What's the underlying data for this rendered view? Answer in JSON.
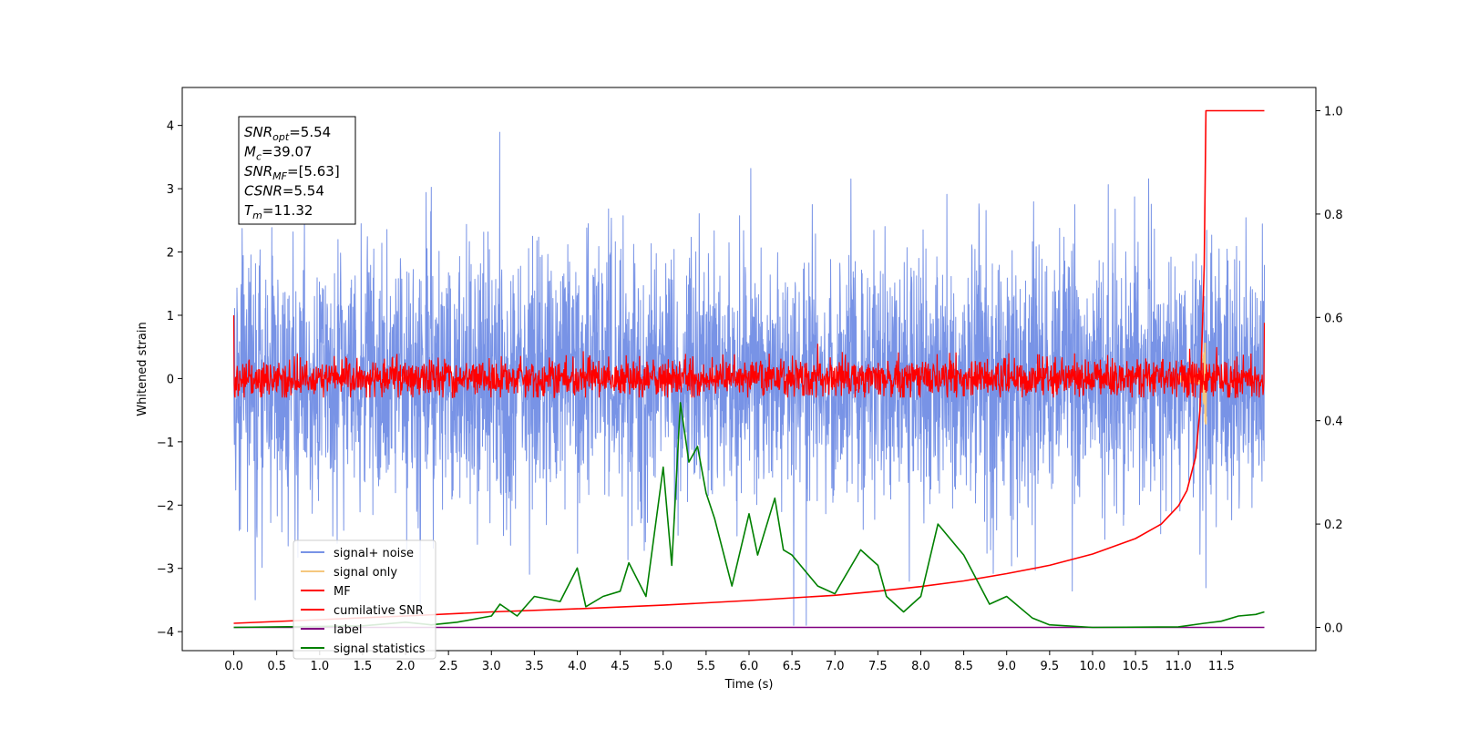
{
  "chart_data": {
    "type": "line",
    "xlabel": "Time (s)",
    "ylabel": "Whitened strain",
    "xlim": [
      -0.6,
      12.6
    ],
    "ylim_left": [
      -4.3,
      4.6
    ],
    "ylim_right": [
      -0.045,
      1.045
    ],
    "x_ticks": [
      0.0,
      0.5,
      1.0,
      1.5,
      2.0,
      2.5,
      3.0,
      3.5,
      4.0,
      4.5,
      5.0,
      5.5,
      6.0,
      6.5,
      7.0,
      7.5,
      8.0,
      8.5,
      9.0,
      9.5,
      10.0,
      10.5,
      11.0,
      11.5
    ],
    "x_tick_labels": [
      "0.0",
      "0.5",
      "1.0",
      "1.5",
      "2.0",
      "2.5",
      "3.0",
      "3.5",
      "4.0",
      "4.5",
      "5.0",
      "5.5",
      "6.0",
      "6.5",
      "7.0",
      "7.5",
      "8.0",
      "8.5",
      "9.0",
      "9.5",
      "10.0",
      "10.5",
      "11.0",
      "11.5"
    ],
    "y_left_ticks": [
      -4,
      -3,
      -2,
      -1,
      0,
      1,
      2,
      3,
      4
    ],
    "y_left_tick_labels": [
      "−4",
      "−3",
      "−2",
      "−1",
      "0",
      "1",
      "2",
      "3",
      "4"
    ],
    "y_right_ticks": [
      0.0,
      0.2,
      0.4,
      0.6,
      0.8,
      1.0
    ],
    "y_right_tick_labels": [
      "0.0",
      "0.2",
      "0.4",
      "0.6",
      "0.8",
      "1.0"
    ],
    "grid": false,
    "legend_position": "lower-left",
    "annotation": {
      "lines": [
        {
          "main": "SNR",
          "sub": "opt",
          "rest": "=5.54"
        },
        {
          "main": "M",
          "sub": "c",
          "rest": "=39.07"
        },
        {
          "main": "SNR",
          "sub": "MF",
          "rest": "=[5.63]"
        },
        {
          "main": "CSNR",
          "sub": "",
          "rest": "=5.54"
        },
        {
          "main": "T",
          "sub": "m",
          "rest": "=11.32"
        }
      ]
    },
    "series": [
      {
        "name": "signal+ noise",
        "color": "#7893e6",
        "axis": "left",
        "style": "noise",
        "x_range": [
          0.0,
          12.0
        ],
        "approx_std": 1.0,
        "y_range": [
          -3.9,
          4.2
        ]
      },
      {
        "name": "signal only",
        "color": "#f5c77e",
        "axis": "left",
        "style": "chirp",
        "merger_time": 11.32,
        "peak_amplitude": 0.45
      },
      {
        "name": "MF",
        "color": "#ff0000",
        "axis": "left",
        "style": "mf",
        "x_range": [
          0.0,
          12.0
        ],
        "baseline_std": 0.15,
        "start_value": 1.0,
        "end_value": 0.88
      },
      {
        "name": "cumilative SNR",
        "color": "#ff0000",
        "axis": "right",
        "x": [
          0.0,
          1.0,
          2.0,
          3.0,
          4.0,
          5.0,
          6.0,
          7.0,
          7.5,
          8.0,
          8.5,
          9.0,
          9.5,
          10.0,
          10.5,
          10.8,
          11.0,
          11.1,
          11.2,
          11.25,
          11.3,
          11.32,
          11.5,
          12.0
        ],
        "y": [
          0.008,
          0.015,
          0.022,
          0.03,
          0.036,
          0.043,
          0.052,
          0.062,
          0.07,
          0.079,
          0.09,
          0.104,
          0.12,
          0.142,
          0.172,
          0.2,
          0.235,
          0.265,
          0.33,
          0.42,
          0.7,
          1.0,
          1.0,
          1.0
        ]
      },
      {
        "name": "label",
        "color": "#800080",
        "axis": "right",
        "x": [
          0.0,
          12.0
        ],
        "y": [
          0.0,
          0.0
        ]
      },
      {
        "name": "signal statistics",
        "color": "#008000",
        "axis": "right",
        "x": [
          0.0,
          0.5,
          1.0,
          1.5,
          2.0,
          2.3,
          2.6,
          3.0,
          3.1,
          3.3,
          3.5,
          3.8,
          4.0,
          4.1,
          4.3,
          4.5,
          4.6,
          4.8,
          5.0,
          5.1,
          5.2,
          5.3,
          5.4,
          5.5,
          5.6,
          5.8,
          6.0,
          6.1,
          6.3,
          6.4,
          6.5,
          6.8,
          7.0,
          7.3,
          7.5,
          7.6,
          7.8,
          8.0,
          8.2,
          8.5,
          8.8,
          9.0,
          9.3,
          9.5,
          10.0,
          11.0,
          11.3,
          11.5,
          11.7,
          11.9,
          12.0
        ],
        "y": [
          0.0,
          0.001,
          0.002,
          0.003,
          0.01,
          0.005,
          0.01,
          0.022,
          0.045,
          0.022,
          0.06,
          0.05,
          0.115,
          0.04,
          0.06,
          0.07,
          0.125,
          0.06,
          0.31,
          0.12,
          0.435,
          0.32,
          0.35,
          0.26,
          0.21,
          0.08,
          0.22,
          0.14,
          0.25,
          0.15,
          0.14,
          0.08,
          0.065,
          0.15,
          0.12,
          0.06,
          0.03,
          0.06,
          0.2,
          0.14,
          0.045,
          0.06,
          0.018,
          0.005,
          0.0,
          0.001,
          0.008,
          0.012,
          0.022,
          0.025,
          0.03
        ]
      }
    ]
  }
}
